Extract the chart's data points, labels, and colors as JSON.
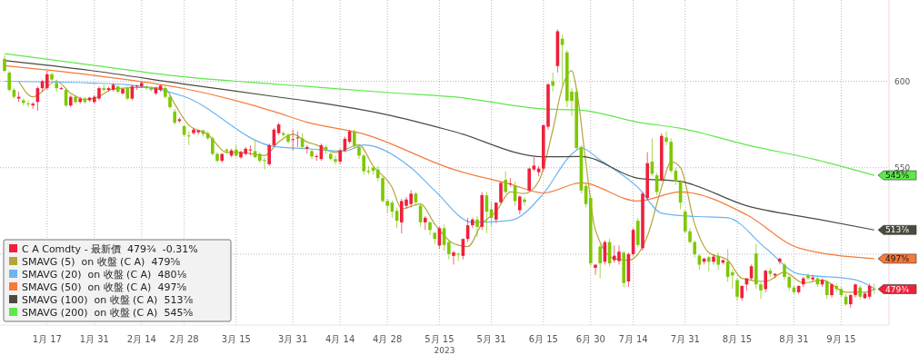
{
  "chart_data": {
    "type": "candlestick",
    "xlabel": "2023",
    "legend": "bottom left",
    "grid": true,
    "ylim": [
      459,
      647
    ],
    "yticks": [
      {
        "value": 500,
        "label": null
      },
      550,
      600
    ],
    "categories": [
      null,
      null,
      null,
      null,
      null,
      null,
      null,
      null,
      null,
      "1月 17",
      null,
      null,
      null,
      null,
      null,
      null,
      null,
      null,
      null,
      "1月 31",
      null,
      null,
      null,
      null,
      null,
      null,
      null,
      null,
      null,
      "2月 14",
      null,
      null,
      null,
      null,
      null,
      null,
      null,
      null,
      "2月 28",
      null,
      null,
      null,
      null,
      null,
      null,
      null,
      null,
      null,
      null,
      "3月 15",
      null,
      null,
      null,
      null,
      null,
      null,
      null,
      null,
      null,
      null,
      null,
      "3月 31",
      null,
      null,
      null,
      null,
      null,
      null,
      null,
      null,
      null,
      "4月 14",
      null,
      null,
      null,
      null,
      null,
      null,
      null,
      null,
      null,
      "4月 28",
      null,
      null,
      null,
      null,
      null,
      null,
      null,
      null,
      null,
      null,
      "5月 15",
      null,
      null,
      null,
      null,
      null,
      null,
      null,
      null,
      null,
      null,
      "5月 31",
      null,
      null,
      null,
      null,
      null,
      null,
      null,
      null,
      null,
      null,
      "6月 15",
      null,
      null,
      null,
      null,
      null,
      null,
      null,
      null,
      null,
      "6月 30",
      null,
      null,
      null,
      null,
      null,
      null,
      null,
      null,
      "7月 14",
      null,
      null,
      null,
      null,
      null,
      null,
      null,
      null,
      null,
      null,
      "7月 31",
      null,
      null,
      null,
      null,
      null,
      null,
      null,
      null,
      null,
      null,
      "8月 15",
      null,
      null,
      null,
      null,
      null,
      null,
      null,
      null,
      null,
      null,
      null,
      "8月 31",
      null,
      null,
      null,
      null,
      null,
      null,
      null,
      null,
      null,
      "9月 15",
      null,
      null,
      null,
      null,
      null,
      null,
      null
    ],
    "series": [
      {
        "name": "C A Comdty - 最新價  479¾  -0.31%",
        "color": "#f0203c",
        "colors": [
          "#7ec800",
          "#7ec800",
          "#7ec800",
          "#f0203c",
          "#7ec800",
          "#7ec800",
          "#f0203c",
          "#f0203c",
          "#f0203c",
          "#f0203c",
          "#7ec800",
          "#7ec800",
          "#f0203c",
          "#7ec800",
          "#f0203c",
          "#7ec800",
          "#f0203c",
          "#7ec800",
          "#f0203c",
          "#f0203c",
          "#f0203c",
          "#7ec800",
          "#f0203c",
          "#f0203c",
          "#7ec800",
          "#f0203c",
          "#7ec800",
          "#f0203c",
          "#f0203c",
          "#f0203c",
          "#7ec800",
          "#7ec800",
          "#f0203c",
          "#f0203c",
          "#7ec800",
          "#7ec800",
          "#7ec800",
          "#f0203c",
          "#7ec800",
          "#7ec800",
          "#f0203c",
          "#f0203c",
          "#7ec800",
          "#7ec800",
          "#7ec800",
          "#7ec800",
          "#f0203c",
          "#7ec800",
          "#f0203c",
          "#7ec800",
          "#f0203c",
          "#f0203c",
          "#f0203c",
          "#7ec800",
          "#7ec800",
          "#7ec800",
          "#f0203c",
          "#f0203c",
          "#f0203c",
          "#7ec800",
          "#7ec800",
          "#f0203c",
          "#f0203c",
          "#7ec800",
          "#f0203c",
          "#7ec800",
          "#f0203c",
          "#f0203c",
          "#7ec800",
          "#7ec800",
          "#7ec800",
          "#f0203c",
          "#f0203c",
          "#f0203c",
          "#7ec800",
          "#7ec800",
          "#7ec800",
          "#7ec800",
          "#7ec800",
          "#7ec800",
          "#7ec800",
          "#7ec800",
          "#7ec800",
          "#7ec800",
          "#f0203c",
          "#f0203c",
          "#f0203c",
          "#7ec800",
          "#7ec800",
          "#f0203c",
          "#7ec800",
          "#7ec800",
          "#f0203c",
          "#7ec800",
          "#7ec800",
          "#f0203c",
          "#7ec800",
          "#f0203c",
          "#f0203c",
          "#f0203c",
          "#7ec800",
          "#f0203c",
          "#7ec800",
          "#7ec800",
          "#f0203c",
          "#f0203c",
          "#7ec800",
          "#f0203c",
          "#7ec800",
          "#f0203c",
          "#7ec800",
          "#f0203c",
          "#f0203c",
          "#f0203c",
          "#f0203c",
          "#f0203c",
          "#7ec800",
          "#f0203c",
          "#7ec800",
          "#7ec800",
          "#7ec800",
          "#7ec800",
          "#7ec800",
          "#7ec800",
          "#7ec800",
          "#f0203c",
          "#7ec800",
          "#f0203c",
          "#7ec800",
          "#f0203c",
          "#f0203c",
          "#7ec800",
          "#f0203c",
          "#f0203c",
          "#7ec800",
          "#f0203c",
          "#f0203c",
          "#7ec800",
          "#7ec800",
          "#f0203c",
          "#7ec800",
          "#7ec800",
          "#7ec800",
          "#7ec800",
          "#7ec800",
          "#7ec800",
          "#7ec800",
          "#7ec800",
          "#f0203c",
          "#7ec800",
          "#f0203c",
          "#7ec800",
          "#f0203c",
          "#7ec800",
          "#7ec800",
          "#7ec800",
          "#f0203c",
          "#f0203c",
          "#f0203c",
          "#7ec800",
          "#7ec800",
          "#f0203c",
          "#7ec800",
          "#f0203c",
          "#f0203c",
          "#7ec800",
          "#7ec800",
          "#7ec800",
          "#f0203c",
          "#f0203c",
          "#7ec800",
          "#f0203c",
          "#7ec800",
          "#f0203c",
          "#7ec800",
          "#f0203c",
          "#7ec800",
          "#7ec800",
          "#7ec800",
          "#f0203c",
          "#f0203c",
          "#7ec800",
          "#f0203c",
          "#f0203c",
          "#7ec800"
        ],
        "ohlc": [
          [
            613,
            615,
            605,
            606
          ],
          [
            605,
            606,
            594,
            595
          ],
          [
            595,
            596,
            590,
            591
          ],
          [
            590,
            594,
            588,
            591
          ],
          [
            589,
            590,
            586,
            587.5
          ],
          [
            587.2,
            589,
            585,
            586.8
          ],
          [
            586,
            588,
            584,
            587
          ],
          [
            588,
            597,
            583,
            596
          ],
          [
            596,
            601,
            594,
            600
          ],
          [
            596,
            606,
            595,
            604
          ],
          [
            604,
            605,
            600,
            601
          ],
          [
            599,
            601,
            594,
            596
          ],
          [
            595.5,
            597,
            595,
            596
          ],
          [
            595,
            596,
            585,
            586
          ],
          [
            586,
            592,
            585,
            591
          ],
          [
            591,
            592,
            587,
            588
          ],
          [
            588,
            591,
            587,
            590
          ],
          [
            590,
            591,
            587,
            588
          ],
          [
            589,
            591,
            588,
            590.5
          ],
          [
            588,
            592,
            587,
            591
          ],
          [
            590,
            597,
            589,
            596
          ],
          [
            596,
            598,
            594,
            595
          ],
          [
            595,
            597,
            594,
            596
          ],
          [
            595,
            599,
            594,
            598
          ],
          [
            597,
            598,
            593,
            594
          ],
          [
            593,
            596,
            592,
            595.5
          ],
          [
            596,
            597,
            589,
            590
          ],
          [
            590,
            598,
            589,
            597
          ],
          [
            597,
            598,
            595,
            597.5
          ],
          [
            597,
            600,
            596,
            599
          ],
          [
            597,
            598,
            595,
            596
          ],
          [
            596,
            597,
            594,
            595
          ],
          [
            593,
            597,
            592,
            596
          ],
          [
            595,
            598,
            594,
            597.5
          ],
          [
            596,
            597,
            590,
            591
          ],
          [
            591,
            592,
            584,
            585
          ],
          [
            582.5,
            584,
            575,
            576
          ],
          [
            577,
            579,
            576,
            578
          ],
          [
            574,
            575,
            568,
            569
          ],
          [
            568.6,
            571,
            563,
            568.4
          ],
          [
            570,
            573,
            569,
            572
          ],
          [
            570.5,
            572,
            569,
            571.5
          ],
          [
            571.6,
            572,
            568,
            569.5
          ],
          [
            570,
            571,
            566,
            567
          ],
          [
            567,
            568,
            557,
            558
          ],
          [
            558,
            559,
            553,
            554
          ],
          [
            554,
            558,
            553,
            558
          ],
          [
            560.5,
            561,
            558,
            559.6
          ],
          [
            557,
            561,
            556,
            560
          ],
          [
            560.5,
            563,
            556,
            557
          ],
          [
            556,
            560,
            555,
            559
          ],
          [
            558,
            562,
            557,
            561
          ],
          [
            560,
            563,
            557,
            560.5
          ],
          [
            559.6,
            566,
            556,
            556
          ],
          [
            558,
            559,
            553,
            554
          ],
          [
            554.4,
            556,
            549,
            554.2
          ],
          [
            552,
            564,
            551,
            563
          ],
          [
            563,
            573,
            562,
            572
          ],
          [
            570,
            576,
            569,
            575
          ],
          [
            570,
            571,
            568,
            569
          ],
          [
            569,
            570,
            564,
            565
          ],
          [
            566,
            572,
            560,
            566.5
          ],
          [
            567,
            571,
            562,
            567.5
          ],
          [
            567,
            570,
            561,
            562
          ],
          [
            561,
            563,
            558,
            562
          ],
          [
            559.6,
            561,
            555,
            556.5
          ],
          [
            556.5,
            558,
            554,
            556.7
          ],
          [
            555,
            564,
            554,
            563
          ],
          [
            562,
            563,
            558,
            560
          ],
          [
            558,
            559,
            554,
            555
          ],
          [
            555,
            557,
            552,
            553.5
          ],
          [
            553.5,
            561,
            552,
            560
          ],
          [
            560,
            568,
            559,
            566.7
          ],
          [
            565,
            572,
            564,
            571
          ],
          [
            571,
            572,
            561,
            563
          ],
          [
            562,
            563,
            555,
            557
          ],
          [
            557,
            558,
            546,
            548
          ],
          [
            548.2,
            551,
            546,
            547.5
          ],
          [
            550,
            551,
            546,
            548.2
          ],
          [
            549,
            551,
            542,
            544
          ],
          [
            544,
            545,
            530,
            530.7
          ],
          [
            530.7,
            532,
            524,
            528
          ],
          [
            529.8,
            531,
            521,
            524.6
          ],
          [
            525,
            527,
            515,
            519.3
          ],
          [
            518.4,
            532,
            512,
            530.7
          ],
          [
            528,
            533,
            526,
            531.6
          ],
          [
            529,
            537,
            527,
            535
          ],
          [
            535,
            536,
            528,
            530
          ],
          [
            528,
            529,
            516,
            518.4
          ],
          [
            518.4,
            522,
            514,
            521
          ],
          [
            518.4,
            519,
            511,
            514
          ],
          [
            512.3,
            513,
            506,
            508.8
          ],
          [
            505,
            516,
            503,
            515
          ],
          [
            515,
            517,
            502,
            505.3
          ],
          [
            507,
            508,
            497,
            500
          ],
          [
            499,
            502,
            494,
            501
          ],
          [
            500.2,
            501,
            496,
            499.9
          ],
          [
            499,
            509,
            497,
            508.8
          ],
          [
            508.8,
            521,
            507,
            516.7
          ],
          [
            516.7,
            521,
            515,
            520
          ],
          [
            520,
            522,
            510,
            515.8
          ],
          [
            515.8,
            536,
            514,
            534.2
          ],
          [
            534,
            536,
            512,
            524.6
          ],
          [
            526,
            530,
            516,
            521
          ],
          [
            520,
            530,
            518,
            529.8
          ],
          [
            530,
            542,
            529,
            541.2
          ],
          [
            543,
            548,
            535,
            536
          ],
          [
            540.5,
            544,
            539,
            541
          ],
          [
            539.5,
            542,
            528,
            530.7
          ],
          [
            525.4,
            534,
            523,
            533.3
          ],
          [
            531.6,
            533,
            528,
            530.2
          ],
          [
            536.8,
            550,
            536,
            549.5
          ],
          [
            549,
            556,
            548,
            551.2
          ],
          [
            547.4,
            551,
            545,
            549.5
          ],
          [
            549.5,
            575,
            548,
            574.6
          ],
          [
            573.7,
            599,
            572,
            598.2
          ],
          [
            600,
            605,
            594,
            597.4
          ],
          [
            608.8,
            630,
            605,
            628.9
          ],
          [
            624.6,
            627,
            598,
            621
          ],
          [
            616.7,
            618,
            585,
            588.6
          ],
          [
            594,
            596,
            580,
            588.6
          ],
          [
            593.9,
            596,
            560,
            561.4
          ],
          [
            562,
            563,
            535,
            536.8
          ],
          [
            539.5,
            541,
            527,
            529
          ],
          [
            532.5,
            534,
            493,
            494.7
          ],
          [
            492.1,
            494,
            488,
            493.9
          ],
          [
            504.4,
            506,
            486,
            494.7
          ],
          [
            495.6,
            508,
            494,
            507
          ],
          [
            507,
            509,
            493,
            494.7
          ],
          [
            496.5,
            505,
            495,
            499.1
          ],
          [
            496,
            505,
            494,
            501.4
          ],
          [
            500.9,
            502,
            481,
            483.3
          ],
          [
            484.2,
            501,
            481,
            500
          ],
          [
            500,
            515,
            499,
            514
          ],
          [
            519.3,
            521,
            504,
            505.3
          ],
          [
            503.5,
            536,
            502,
            535
          ],
          [
            532.5,
            559,
            531,
            552.6
          ],
          [
            553.5,
            567,
            545,
            546.5
          ],
          [
            545.6,
            547,
            534,
            536
          ],
          [
            543,
            570,
            542,
            568.4
          ],
          [
            567.5,
            571,
            563,
            565
          ],
          [
            565,
            567,
            547,
            548.2
          ],
          [
            548.2,
            550,
            540,
            542
          ],
          [
            542,
            543,
            526,
            529.8
          ],
          [
            524.6,
            526,
            512,
            513.2
          ],
          [
            513.2,
            515,
            506,
            507
          ],
          [
            507,
            508,
            498,
            500
          ],
          [
            499.1,
            500,
            491,
            493.9
          ],
          [
            495.6,
            498,
            494,
            497.4
          ],
          [
            498.2,
            499,
            490,
            495.6
          ],
          [
            495.6,
            500,
            494,
            498.6
          ],
          [
            499,
            501,
            491,
            493.9
          ],
          [
            495.1,
            497,
            494,
            496.5
          ],
          [
            495.6,
            503,
            484,
            486.8
          ],
          [
            489.5,
            491,
            480,
            487.7
          ],
          [
            485,
            486,
            473,
            475.4
          ],
          [
            474.6,
            482,
            473,
            481.6
          ],
          [
            482.5,
            486,
            479,
            486
          ],
          [
            486,
            494,
            485,
            493
          ],
          [
            500.4,
            506,
            480,
            482.5
          ],
          [
            482.5,
            484,
            474,
            479
          ],
          [
            479.8,
            491,
            478,
            490.4
          ],
          [
            490.4,
            492,
            487,
            488.6
          ],
          [
            487.7,
            489,
            486,
            488.6
          ],
          [
            495.6,
            498,
            494,
            497.4
          ],
          [
            493.9,
            495,
            485,
            486.8
          ],
          [
            486.8,
            488,
            479,
            480.7
          ],
          [
            480.7,
            482,
            477,
            478
          ],
          [
            478,
            482,
            477,
            481.6
          ],
          [
            482.5,
            487,
            481,
            486
          ],
          [
            487.7,
            489,
            485,
            486
          ],
          [
            485.4,
            488,
            484,
            486.5
          ],
          [
            486,
            487,
            481,
            482.5
          ],
          [
            482.5,
            486,
            481,
            485
          ],
          [
            484.2,
            485,
            474,
            476.3
          ],
          [
            476.3,
            483,
            475,
            482.5
          ],
          [
            481.6,
            483,
            478,
            479.8
          ],
          [
            479.8,
            481,
            475,
            476.3
          ],
          [
            475.4,
            477,
            470,
            471
          ],
          [
            471,
            477,
            469,
            476.3
          ],
          [
            476.3,
            483,
            475,
            482.5
          ],
          [
            480.7,
            482,
            474,
            475.4
          ],
          [
            474.6,
            478,
            474,
            477.2
          ],
          [
            475.4,
            483,
            474,
            481.6
          ],
          [
            480,
            483,
            477,
            479.8
          ]
        ]
      },
      {
        "name": "SMAVG (5)  on 收盤 (C A)  479⅝",
        "type": "line",
        "color": "#b3a538",
        "values": [
          null,
          null,
          null,
          600,
          null,
          null,
          591,
          null,
          null,
          null,
          null,
          600,
          null,
          null,
          593,
          null,
          null,
          589.5,
          null,
          null,
          591.2,
          null,
          null,
          595.6,
          null,
          null,
          null,
          null,
          null,
          null,
          596.5,
          null,
          null,
          null,
          595.6,
          null,
          586.8,
          null,
          null,
          574.6,
          null,
          null,
          null,
          569.3,
          null,
          null,
          null,
          558.8,
          null,
          null,
          558.8,
          null,
          null,
          null,
          null,
          557,
          null,
          null,
          564.9,
          null,
          null,
          569.3,
          null,
          null,
          564.9,
          null,
          563.2,
          null,
          null,
          null,
          558.8,
          null,
          null,
          null,
          null,
          563.2,
          null,
          null,
          550.9,
          null,
          null,
          null,
          538.6,
          null,
          526.3,
          null,
          null,
          null,
          529,
          null,
          null,
          517.5,
          null,
          null,
          null,
          506.1,
          null,
          null,
          504.4,
          null,
          null,
          517.5,
          null,
          null,
          524.6,
          null,
          null,
          536,
          null,
          null,
          535.1,
          null,
          null,
          542.1,
          null,
          null,
          571.9,
          null,
          596.5,
          null,
          606.1,
          595.6,
          null,
          552.6,
          null,
          514,
          null,
          null,
          null,
          497.4,
          null,
          null,
          496.5,
          null,
          null,
          null,
          510.5,
          null,
          null,
          538.6,
          null,
          553.5,
          null,
          550,
          null,
          null,
          517.5,
          null,
          null,
          500.9,
          null,
          null,
          null,
          496.5,
          null,
          null,
          486,
          null,
          null,
          null,
          null,
          484.2,
          null,
          null,
          null,
          489.5,
          null,
          null,
          null,
          483.3,
          null,
          null,
          null,
          485.1,
          null,
          null,
          null,
          null,
          478,
          null,
          null,
          null,
          478,
          null,
          479.6
        ]
      },
      {
        "name": "SMAVG (20)  on 收盤 (C A)  480⅛",
        "type": "line",
        "color": "#6cb4f0",
        "values": [
          600,
          null,
          null,
          null,
          null,
          null,
          null,
          null,
          null,
          null,
          null,
          null,
          null,
          null,
          null,
          null,
          null,
          null,
          599,
          null,
          null,
          null,
          null,
          null,
          null,
          null,
          598,
          null,
          null,
          null,
          null,
          null,
          null,
          null,
          null,
          null,
          null,
          null,
          591.2,
          null,
          null,
          null,
          null,
          null,
          null,
          null,
          null,
          null,
          null,
          null,
          null,
          null,
          null,
          null,
          null,
          null,
          null,
          562.3,
          null,
          null,
          null,
          null,
          null,
          null,
          561,
          null,
          null,
          null,
          null,
          null,
          null,
          null,
          559.6,
          null,
          null,
          null,
          563.2,
          null,
          null,
          null,
          null,
          null,
          null,
          null,
          null,
          null,
          550,
          null,
          null,
          null,
          null,
          536.8,
          null,
          null,
          null,
          null,
          null,
          null,
          null,
          518.4,
          null,
          null,
          null,
          null,
          null,
          null,
          null,
          519.5,
          null,
          null,
          null,
          null,
          null,
          null,
          535,
          null,
          null,
          null,
          null,
          null,
          557.9,
          null,
          561.4,
          null,
          null,
          null,
          554.4,
          null,
          null,
          null,
          null,
          null,
          null,
          null,
          538.6,
          null,
          null,
          null,
          null,
          523.7,
          null,
          null,
          null,
          null,
          null,
          522,
          null,
          null,
          null,
          null,
          null,
          null,
          null,
          521,
          null,
          null,
          null,
          null,
          null,
          null,
          null,
          503.5,
          null,
          null,
          null,
          null,
          null,
          null,
          488.6,
          null,
          null,
          null,
          null,
          null,
          null,
          null,
          null,
          null,
          null,
          null,
          485.2,
          null,
          null,
          null,
          480.1
        ]
      },
      {
        "name": "SMAVG (50)  on 收盤 (C A)  497⅝",
        "type": "line",
        "color": "#f57a3a",
        "values": [
          609,
          null,
          null,
          null,
          null,
          null,
          null,
          null,
          null,
          null,
          null,
          null,
          null,
          null,
          null,
          null,
          null,
          null,
          603.7,
          null,
          null,
          null,
          null,
          null,
          null,
          null,
          null,
          null,
          null,
          null,
          null,
          null,
          null,
          null,
          null,
          null,
          null,
          null,
          595.8,
          null,
          null,
          null,
          null,
          null,
          null,
          null,
          null,
          null,
          null,
          null,
          null,
          null,
          null,
          null,
          null,
          null,
          null,
          582.5,
          null,
          null,
          null,
          null,
          null,
          null,
          576.3,
          null,
          null,
          null,
          null,
          null,
          null,
          null,
          null,
          null,
          null,
          null,
          569.5,
          null,
          null,
          null,
          null,
          null,
          null,
          null,
          null,
          null,
          null,
          null,
          null,
          null,
          null,
          null,
          null,
          null,
          null,
          549,
          null,
          null,
          null,
          null,
          null,
          null,
          null,
          null,
          null,
          null,
          null,
          540.5,
          null,
          null,
          null,
          null,
          null,
          null,
          535.4,
          null,
          null,
          null,
          null,
          null,
          null,
          null,
          541.2,
          null,
          null,
          null,
          null,
          null,
          null,
          null,
          null,
          null,
          null,
          null,
          530.7,
          null,
          null,
          null,
          null,
          null,
          null,
          null,
          null,
          536,
          null,
          null,
          null,
          null,
          null,
          null,
          null,
          null,
          null,
          null,
          null,
          null,
          null,
          522.8,
          null,
          null,
          null,
          null,
          null,
          null,
          null,
          null,
          null,
          null,
          503.6,
          null,
          null,
          null,
          null,
          null,
          null,
          null,
          null,
          null,
          null,
          null,
          null,
          null,
          null,
          null,
          497.4
        ]
      },
      {
        "name": "SMAVG (100)  on 收盤 (C A)  513⅞",
        "type": "line",
        "color": "#4a4a40",
        "values": [
          612,
          null,
          null,
          null,
          null,
          null,
          null,
          null,
          null,
          null,
          null,
          null,
          null,
          null,
          null,
          null,
          null,
          null,
          606.3,
          null,
          null,
          null,
          null,
          null,
          null,
          null,
          null,
          null,
          null,
          null,
          null,
          null,
          null,
          null,
          null,
          null,
          null,
          null,
          598.4,
          null,
          null,
          null,
          null,
          null,
          null,
          null,
          null,
          null,
          null,
          null,
          null,
          null,
          null,
          null,
          null,
          null,
          null,
          591.2,
          null,
          null,
          null,
          null,
          null,
          null,
          588.6,
          null,
          null,
          null,
          null,
          null,
          null,
          null,
          null,
          null,
          null,
          null,
          null,
          null,
          null,
          null,
          null,
          null,
          580,
          null,
          null,
          null,
          null,
          null,
          null,
          null,
          null,
          null,
          null,
          null,
          null,
          571,
          null,
          null,
          null,
          null,
          null,
          null,
          null,
          null,
          null,
          null,
          null,
          null,
          null,
          null,
          null,
          null,
          null,
          null,
          556.3,
          null,
          null,
          null,
          null,
          null,
          null,
          null,
          556.5,
          null,
          null,
          null,
          null,
          null,
          null,
          null,
          null,
          null,
          null,
          null,
          543.9,
          null,
          null,
          null,
          null,
          null,
          null,
          null,
          null,
          542,
          null,
          null,
          null,
          null,
          null,
          null,
          null,
          null,
          null,
          null,
          null,
          null,
          null,
          528,
          null,
          null,
          null,
          null,
          null,
          null,
          null,
          null,
          null,
          null,
          null,
          null,
          null,
          null,
          520.2,
          null,
          null,
          null,
          null,
          null,
          null,
          null,
          null,
          null,
          null,
          null,
          514
        ]
      },
      {
        "name": "SMAVG (200)  on 收盤 (C A)  545⅝",
        "type": "line",
        "color": "#5ee84a",
        "values": [
          616,
          null,
          null,
          null,
          null,
          null,
          null,
          null,
          null,
          null,
          null,
          null,
          null,
          null,
          null,
          null,
          null,
          null,
          609.5,
          null,
          null,
          null,
          null,
          null,
          null,
          null,
          null,
          null,
          null,
          null,
          null,
          null,
          null,
          null,
          null,
          null,
          null,
          null,
          602.6,
          null,
          null,
          null,
          null,
          null,
          null,
          null,
          null,
          null,
          null,
          null,
          null,
          null,
          null,
          null,
          null,
          null,
          null,
          598.4,
          null,
          null,
          null,
          null,
          null,
          null,
          597,
          null,
          null,
          null,
          null,
          null,
          null,
          null,
          null,
          null,
          null,
          null,
          null,
          null,
          null,
          null,
          null,
          null,
          593.3,
          null,
          null,
          null,
          null,
          null,
          null,
          null,
          null,
          null,
          null,
          null,
          null,
          591,
          null,
          null,
          null,
          null,
          null,
          null,
          null,
          null,
          null,
          null,
          null,
          null,
          null,
          null,
          null,
          null,
          null,
          null,
          584,
          null,
          null,
          null,
          null,
          null,
          null,
          null,
          583.3,
          null,
          null,
          null,
          null,
          null,
          null,
          null,
          null,
          null,
          null,
          null,
          576.3,
          null,
          null,
          null,
          null,
          null,
          null,
          null,
          null,
          572.8,
          null,
          null,
          null,
          null,
          null,
          null,
          null,
          null,
          null,
          null,
          null,
          null,
          null,
          563.2,
          null,
          null,
          null,
          null,
          null,
          null,
          null,
          null,
          null,
          null,
          null,
          null,
          null,
          null,
          554.4,
          null,
          null,
          null,
          null,
          null,
          null,
          null,
          null,
          null,
          null,
          null,
          545.6
        ]
      }
    ],
    "annotations": [
      "545⅝",
      "513⅞",
      "497⅝",
      "479¾"
    ]
  }
}
